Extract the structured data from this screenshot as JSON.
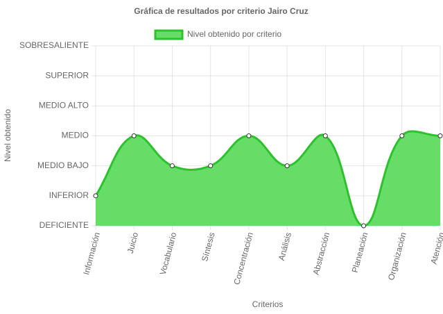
{
  "chart_data": {
    "type": "line",
    "title": "Gráfica de resultados por criterio Jairo Cruz",
    "x_label": "Criterios",
    "y_label": "Nivel obtenido",
    "categories": [
      "Información",
      "Juicio",
      "Vocabulario",
      "Síntesis",
      "Concentración",
      "Análisis",
      "Abstracción",
      "Planeación",
      "Organización",
      "Atención"
    ],
    "series": [
      {
        "name": "Nivel obtenido por criterio",
        "color": "#2ec02e",
        "fill": "#66dd66",
        "values": [
          1,
          3,
          2,
          2,
          3,
          2,
          3,
          0,
          3,
          3
        ]
      }
    ],
    "ylim": [
      0,
      6
    ],
    "yticks": [
      {
        "value": 0,
        "label": "DEFICIENTE"
      },
      {
        "value": 1,
        "label": "INFERIOR"
      },
      {
        "value": 2,
        "label": "MEDIO BAJO"
      },
      {
        "value": 3,
        "label": "MEDIO"
      },
      {
        "value": 4,
        "label": "MEDIO ALTO"
      },
      {
        "value": 5,
        "label": "SUPERIOR"
      },
      {
        "value": 6,
        "label": "SOBRESALIENTE"
      }
    ],
    "grid": true,
    "legend": "top"
  }
}
